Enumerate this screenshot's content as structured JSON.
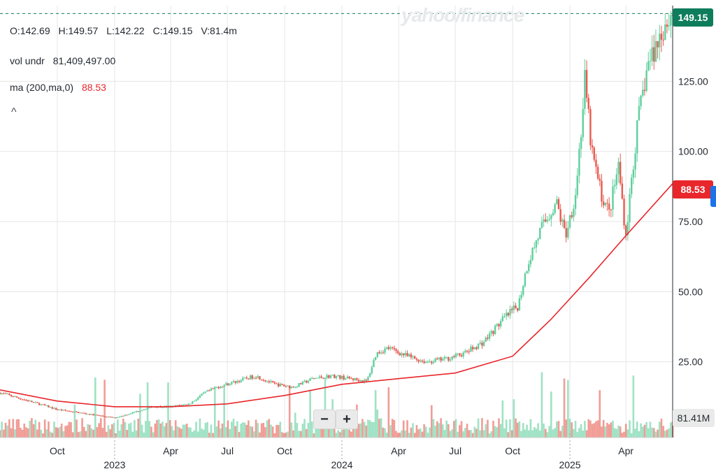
{
  "header": {
    "ohlc": {
      "open": "O:142.69",
      "high": "H:149.57",
      "low": "L:142.22",
      "close": "C:149.15",
      "vol": "V:81.4m"
    },
    "vol_label": "vol undr",
    "vol_value": "81,409,497.00",
    "ma_label": "ma (200,ma,0)",
    "ma_value": "88.53",
    "collapse_icon": "chevron-up-icon"
  },
  "watermark": "yahoo/finance",
  "tags": {
    "last": "149.15",
    "ma": "88.53",
    "vol": "81.41M"
  },
  "zoom": {
    "minus": "−",
    "plus": "+"
  },
  "colors": {
    "up": "#5fcf9d",
    "down": "#e85a4f",
    "ma": "#e8262b",
    "last_tag": "#0e7d5b",
    "ma_tag": "#e8262b"
  },
  "chart_data": {
    "type": "line",
    "title": "",
    "y_axis": {
      "ticks": [
        "25.00",
        "50.00",
        "75.00",
        "100.00",
        "125.00"
      ],
      "values": [
        25,
        50,
        75,
        100,
        125
      ],
      "range": [
        -2,
        152
      ]
    },
    "x_axis": {
      "range": [
        "2022-07-01",
        "2025-06-15"
      ],
      "ticks": [
        {
          "label": "Oct",
          "date": "2022-10-01"
        },
        {
          "label": "2023",
          "date": "2023-01-01",
          "year": true
        },
        {
          "label": "Apr",
          "date": "2023-04-01"
        },
        {
          "label": "Jul",
          "date": "2023-07-01"
        },
        {
          "label": "Oct",
          "date": "2023-10-01"
        },
        {
          "label": "2024",
          "date": "2024-01-01",
          "year": true
        },
        {
          "label": "Apr",
          "date": "2024-04-01"
        },
        {
          "label": "Jul",
          "date": "2024-07-01"
        },
        {
          "label": "Oct",
          "date": "2024-10-01"
        },
        {
          "label": "2025",
          "date": "2025-01-01",
          "year": true
        },
        {
          "label": "Apr",
          "date": "2025-04-01"
        }
      ]
    },
    "series": [
      {
        "kind": "price",
        "points": [
          [
            "2022-07-01",
            14
          ],
          [
            "2022-08-01",
            12
          ],
          [
            "2022-09-01",
            10
          ],
          [
            "2022-10-01",
            8
          ],
          [
            "2022-11-01",
            7
          ],
          [
            "2022-12-01",
            6
          ],
          [
            "2023-01-01",
            5
          ],
          [
            "2023-02-01",
            7
          ],
          [
            "2023-03-01",
            9
          ],
          [
            "2023-04-01",
            9
          ],
          [
            "2023-05-01",
            10
          ],
          [
            "2023-05-26",
            14
          ],
          [
            "2023-06-15",
            16
          ],
          [
            "2023-07-15",
            18
          ],
          [
            "2023-08-15",
            20
          ],
          [
            "2023-09-15",
            17
          ],
          [
            "2023-10-15",
            16
          ],
          [
            "2023-11-15",
            19
          ],
          [
            "2023-12-15",
            20
          ],
          [
            "2024-01-15",
            19
          ],
          [
            "2024-02-10",
            18
          ],
          [
            "2024-02-25",
            28
          ],
          [
            "2024-03-15",
            30
          ],
          [
            "2024-04-15",
            27
          ],
          [
            "2024-05-15",
            25
          ],
          [
            "2024-06-15",
            26
          ],
          [
            "2024-07-15",
            28
          ],
          [
            "2024-08-15",
            32
          ],
          [
            "2024-09-15",
            40
          ],
          [
            "2024-10-10",
            45
          ],
          [
            "2024-10-25",
            60
          ],
          [
            "2024-11-15",
            72
          ],
          [
            "2024-12-10",
            82
          ],
          [
            "2024-12-25",
            70
          ],
          [
            "2025-01-10",
            85
          ],
          [
            "2025-01-20",
            110
          ],
          [
            "2025-01-25",
            125
          ],
          [
            "2025-02-05",
            100
          ],
          [
            "2025-02-20",
            85
          ],
          [
            "2025-03-05",
            78
          ],
          [
            "2025-03-20",
            95
          ],
          [
            "2025-04-01",
            70
          ],
          [
            "2025-04-10",
            90
          ],
          [
            "2025-04-20",
            110
          ],
          [
            "2025-05-05",
            130
          ],
          [
            "2025-05-20",
            138
          ],
          [
            "2025-06-01",
            145
          ],
          [
            "2025-06-15",
            149
          ]
        ]
      },
      {
        "kind": "ma",
        "points": [
          [
            "2022-07-01",
            15
          ],
          [
            "2022-10-01",
            11
          ],
          [
            "2023-01-01",
            9
          ],
          [
            "2023-04-01",
            9
          ],
          [
            "2023-07-01",
            10
          ],
          [
            "2023-10-01",
            13
          ],
          [
            "2024-01-01",
            17
          ],
          [
            "2024-04-01",
            19
          ],
          [
            "2024-07-01",
            21
          ],
          [
            "2024-10-01",
            27
          ],
          [
            "2024-12-01",
            40
          ],
          [
            "2025-02-01",
            55
          ],
          [
            "2025-04-01",
            70
          ],
          [
            "2025-06-15",
            88.53
          ]
        ]
      }
    ],
    "last_price": 149.15,
    "volume_label": "81.41M"
  }
}
